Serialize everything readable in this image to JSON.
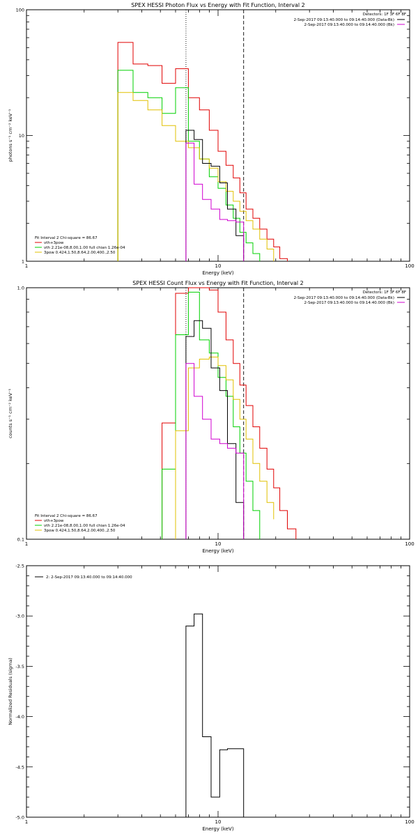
{
  "chart_data": [
    {
      "type": "line",
      "step": true,
      "title": "SPEX HESSI Photon Flux vs Energy with Fit Function, Interval 2",
      "xlabel": "Energy (keV)",
      "ylabel": "photons s⁻¹ cm⁻² keV⁻¹",
      "xscale": "log",
      "yscale": "log",
      "xlim": [
        1,
        100
      ],
      "ylim": [
        1,
        100
      ],
      "x_ticks": [
        "1",
        "10",
        "100"
      ],
      "y_ticks": [
        "1",
        "10",
        "100"
      ],
      "legend_header": "Detectors: 1F 3F 6F 8F",
      "legend": [
        {
          "label": "2-Sep-2017 09:13:40.000 to 09:14:40.000 (Data-Bk)",
          "color": "#000000"
        },
        {
          "label": "2-Sep-2017 09:13:40.000 to 09:14:40.000 (Bk)",
          "color": "#d000d0"
        }
      ],
      "fit_info": [
        {
          "label": "Fit Interval 2   Chi-square = 86.67",
          "color": "#000000"
        },
        {
          "label": "vth+3pow",
          "color": "#e00000"
        },
        {
          "label": "vth 2.21e-08,8.00,1.00  full chian 1.26e-04",
          "color": "#00d000"
        },
        {
          "label": "3pow 0.424,1.50,8.64,2.00,400.,2.50",
          "color": "#e0c000"
        }
      ],
      "vlines": [
        {
          "x": 6.8,
          "style": "dotted"
        },
        {
          "x": 13.6,
          "style": "dashed"
        }
      ],
      "series": [
        {
          "color": "#e00000",
          "edges": [
            3,
            3.6,
            4.3,
            5.1,
            6,
            7,
            8,
            9,
            10,
            11,
            12,
            13,
            14,
            15.2,
            16.5,
            18,
            19.5,
            21,
            23
          ],
          "values": [
            55,
            37,
            36,
            26,
            34,
            20,
            16,
            11,
            7.5,
            5.8,
            4.6,
            3.5,
            2.6,
            2.2,
            1.8,
            1.5,
            1.3,
            1.05
          ]
        },
        {
          "color": "#00d000",
          "edges": [
            3,
            3.6,
            4.3,
            5.1,
            6,
            7,
            8,
            9,
            10,
            11,
            12,
            13,
            14,
            15.2,
            16.5
          ],
          "values": [
            33,
            22,
            20,
            15,
            24,
            9,
            6.5,
            4.7,
            3.8,
            2.8,
            2.2,
            1.7,
            1.4,
            1.15
          ]
        },
        {
          "color": "#e0c000",
          "edges": [
            3,
            3.6,
            4.3,
            5.1,
            6,
            7,
            8,
            9,
            10,
            11,
            12,
            13,
            14,
            15.2,
            16.5,
            18,
            19.5
          ],
          "values": [
            22,
            19,
            16,
            12,
            9,
            8,
            6.5,
            5.5,
            4.3,
            3.6,
            3.0,
            2.5,
            2.1,
            1.8,
            1.5,
            1.25
          ]
        },
        {
          "color": "#000000",
          "edges": [
            6.8,
            7.5,
            8.3,
            9.2,
            10.2,
            11.2,
            12.4,
            13.6
          ],
          "values": [
            11,
            9.3,
            6,
            5.7,
            4.2,
            2.6,
            1.6
          ]
        },
        {
          "color": "#d000d0",
          "edges": [
            6.8,
            7.5,
            8.3,
            9.2,
            10.2,
            11.2,
            12.4,
            13.6
          ],
          "values": [
            8.7,
            4.1,
            3.1,
            2.6,
            2.15,
            2.1,
            2.05
          ]
        }
      ]
    },
    {
      "type": "line",
      "step": true,
      "title": "SPEX HESSI Count Flux vs Energy with Fit Function, Interval 2",
      "xlabel": "Energy (keV)",
      "ylabel": "counts s⁻¹ cm⁻² keV⁻¹",
      "xscale": "log",
      "yscale": "log",
      "xlim": [
        1,
        100
      ],
      "ylim": [
        0.1,
        1.0
      ],
      "x_ticks": [
        "1",
        "10",
        "100"
      ],
      "y_ticks": [
        "0.1",
        "1.0"
      ],
      "legend_header": "Detectors: 1F 3F 6F 8F",
      "legend": [
        {
          "label": "2-Sep-2017 09:13:40.000 to 09:14:40.000 (Data-Bk)",
          "color": "#000000"
        },
        {
          "label": "2-Sep-2017 09:13:40.000 to 09:14:40.000 (Bk)",
          "color": "#d000d0"
        }
      ],
      "fit_info": [
        {
          "label": "Fit Interval 2   Chi-square = 86.67",
          "color": "#000000"
        },
        {
          "label": "vth+3pow",
          "color": "#e00000"
        },
        {
          "label": "vth 2.21e-08,8.00,1.00  full chian 1.26e-04",
          "color": "#00d000"
        },
        {
          "label": "3pow 0.424,1.50,8.64,2.00,400.,2.50",
          "color": "#e0c000"
        }
      ],
      "vlines": [
        {
          "x": 6.8,
          "style": "dotted"
        },
        {
          "x": 13.6,
          "style": "dashed"
        }
      ],
      "series": [
        {
          "color": "#e00000",
          "edges": [
            5.1,
            6,
            7,
            8,
            9,
            10,
            11,
            12,
            13,
            14,
            15.2,
            16.5,
            18,
            19.5,
            21,
            23,
            25.5
          ],
          "values": [
            0.29,
            0.95,
            1.0,
            1.0,
            0.98,
            0.8,
            0.62,
            0.5,
            0.41,
            0.34,
            0.28,
            0.23,
            0.19,
            0.16,
            0.13,
            0.11,
            0.1
          ]
        },
        {
          "color": "#00d000",
          "edges": [
            5.1,
            6,
            7,
            8,
            9,
            10,
            11,
            12,
            13,
            14,
            15.2,
            16.5
          ],
          "values": [
            0.19,
            0.65,
            0.96,
            0.62,
            0.55,
            0.44,
            0.37,
            0.28,
            0.22,
            0.17,
            0.13,
            0.1
          ]
        },
        {
          "color": "#e0c000",
          "edges": [
            6,
            7,
            8,
            9,
            10,
            11,
            12,
            13,
            14,
            15.2,
            16.5,
            18,
            19.5
          ],
          "values": [
            0.27,
            0.48,
            0.52,
            0.53,
            0.49,
            0.43,
            0.36,
            0.3,
            0.25,
            0.2,
            0.17,
            0.14,
            0.12
          ]
        },
        {
          "color": "#000000",
          "edges": [
            6.8,
            7.5,
            8.3,
            9.2,
            10.2,
            11.2,
            12.4,
            13.6
          ],
          "values": [
            0.64,
            0.74,
            0.69,
            0.48,
            0.39,
            0.24,
            0.14
          ]
        },
        {
          "color": "#d000d0",
          "edges": [
            6.8,
            7.5,
            8.3,
            9.2,
            10.2,
            11.2,
            12.4,
            13.6
          ],
          "values": [
            0.5,
            0.37,
            0.3,
            0.25,
            0.24,
            0.23,
            0.22
          ]
        }
      ]
    },
    {
      "type": "line",
      "step": true,
      "title": "",
      "xlabel": "Energy (keV)",
      "ylabel": "Normalized Residuals (sigma)",
      "xscale": "log",
      "yscale": "linear",
      "xlim": [
        1,
        100
      ],
      "ylim": [
        -5.0,
        -2.5
      ],
      "x_ticks": [
        "1",
        "10",
        "100"
      ],
      "y_ticks": [
        "-2.5",
        "-3.0",
        "-3.5",
        "-4.0",
        "-4.5",
        "-5.0"
      ],
      "legend": [
        {
          "label": "2:  2-Sep-2017 09:13:40.000 to 09:14:40.000",
          "color": "#000000"
        }
      ],
      "series": [
        {
          "color": "#000000",
          "edges": [
            6.8,
            7.5,
            8.3,
            9.2,
            10.2,
            11.2,
            12.4,
            13.6
          ],
          "values": [
            -3.1,
            -2.98,
            -4.2,
            -4.8,
            -4.33,
            -4.32,
            -4.32
          ]
        }
      ]
    }
  ]
}
